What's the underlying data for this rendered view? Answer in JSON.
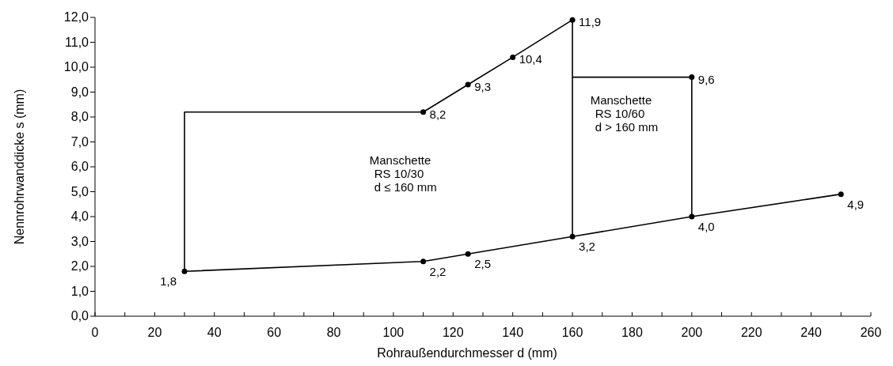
{
  "chart_data": {
    "type": "line",
    "xlabel": "Rohraußendurchmesser d (mm)",
    "ylabel": "Nennrohrwanddicke s (mm)",
    "xlim": [
      0,
      260
    ],
    "ylim": [
      0,
      12
    ],
    "xticks": [
      0,
      {
        "value": 10,
        "label": null
      },
      20,
      {
        "value": 30,
        "label": null
      },
      40,
      {
        "value": 50,
        "label": null
      },
      60,
      {
        "value": 70,
        "label": null
      },
      80,
      {
        "value": 90,
        "label": null
      },
      100,
      {
        "value": 110,
        "label": null
      },
      120,
      {
        "value": 130,
        "label": null
      },
      140,
      {
        "value": 150,
        "label": null
      },
      160,
      {
        "value": 170,
        "label": null
      },
      180,
      {
        "value": 190,
        "label": null
      },
      200,
      {
        "value": 210,
        "label": null
      },
      220,
      {
        "value": 230,
        "label": null
      },
      240,
      {
        "value": 250,
        "label": null
      },
      260
    ],
    "yticks": [
      {
        "value": 0,
        "label": "0,0"
      },
      {
        "value": 1,
        "label": "1,0"
      },
      {
        "value": 2,
        "label": "2,0"
      },
      {
        "value": 3,
        "label": "3,0"
      },
      {
        "value": 4,
        "label": "4,0"
      },
      {
        "value": 5,
        "label": "5,0"
      },
      {
        "value": 6,
        "label": "6,0"
      },
      {
        "value": 7,
        "label": "7,0"
      },
      {
        "value": 8,
        "label": "8,0"
      },
      {
        "value": 9,
        "label": "9,0"
      },
      {
        "value": 10,
        "label": "10,0"
      },
      {
        "value": 11,
        "label": "11,0"
      },
      {
        "value": 12,
        "label": "12,0"
      }
    ],
    "series": [
      {
        "color": "#000000",
        "marker": "circle",
        "x": [
          30,
          110,
          125,
          160,
          200,
          250
        ],
        "values": [
          1.8,
          2.2,
          2.5,
          3.2,
          4.0,
          4.9
        ],
        "value_labels": [
          "1,8",
          "2,2",
          "2,5",
          "3,2",
          "4,0",
          "4,9"
        ]
      },
      {
        "color": "#000000",
        "marker": "circle",
        "x": [
          110,
          125,
          140,
          160
        ],
        "values": [
          8.2,
          9.3,
          10.4,
          11.9
        ],
        "value_labels": [
          "8,2",
          "9,3",
          "10,4",
          "11,9"
        ]
      },
      {
        "color": "#000000",
        "marker": "none",
        "x": [
          30,
          30,
          110
        ],
        "values": [
          1.8,
          8.2,
          8.2
        ]
      },
      {
        "color": "#000000",
        "marker": "none",
        "x": [
          160,
          160,
          160,
          200,
          200
        ],
        "values": [
          3.2,
          11.9,
          9.6,
          9.6,
          4.0
        ]
      },
      {
        "type": "scatter",
        "color": "#000000",
        "marker": "circle",
        "x": [
          200
        ],
        "values": [
          9.6
        ],
        "value_labels": [
          "9,6"
        ]
      }
    ],
    "annotations": [
      "Manschette\nRS 10/30\nd ≤ 160 mm",
      "Manschette\nRS 10/60\nd > 160 mm"
    ]
  }
}
